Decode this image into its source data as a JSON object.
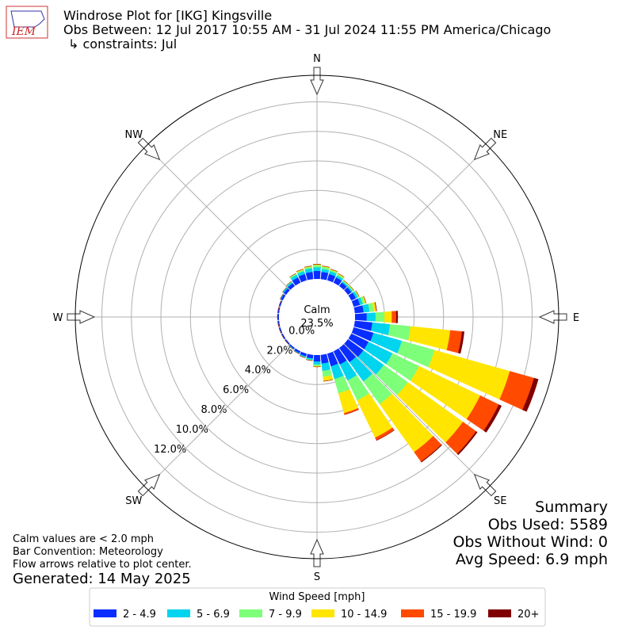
{
  "chart_data": {
    "type": "windrose",
    "title": "Windrose Plot for [IKG] Kingsville",
    "subtitle": "Obs Between: 12 Jul 2017 10:55 AM - 31 Jul 2024 11:55 PM America/Chicago",
    "constraints": "↳ constraints: Jul",
    "logo": "IEM",
    "calm_label": "Calm",
    "calm_value": 23.5,
    "calm_value_label": "23.5%",
    "directions": [
      0,
      10,
      20,
      30,
      40,
      50,
      60,
      70,
      80,
      90,
      100,
      110,
      120,
      130,
      140,
      150,
      160,
      170,
      180,
      190,
      200,
      210,
      220,
      230,
      240,
      250,
      260,
      270,
      280,
      290,
      300,
      310,
      320,
      330,
      340,
      350
    ],
    "xticks": [
      {
        "value": 0,
        "label": "N"
      },
      {
        "value": 45,
        "label": "NE"
      },
      {
        "value": 90,
        "label": "E"
      },
      {
        "value": 135,
        "label": "SE"
      },
      {
        "value": 180,
        "label": "S"
      },
      {
        "value": 225,
        "label": "SW"
      },
      {
        "value": 270,
        "label": "W"
      },
      {
        "value": 315,
        "label": "NW"
      }
    ],
    "ylim": [
      0,
      13.8
    ],
    "yticks": [
      {
        "value": 0,
        "label": "0.0%"
      },
      {
        "value": 2,
        "label": "2.0%"
      },
      {
        "value": 4,
        "label": "4.0%"
      },
      {
        "value": 6,
        "label": "6.0%"
      },
      {
        "value": 8,
        "label": "8.0%"
      },
      {
        "value": 10,
        "label": "10.0%"
      },
      {
        "value": 12,
        "label": "12.0%"
      }
    ],
    "grid": true,
    "legend_title": "Wind Speed [mph]",
    "series": [
      {
        "name": "2 - 4.9",
        "color": "#0a2dff",
        "values": [
          0.55,
          0.5,
          0.45,
          0.4,
          0.3,
          0.3,
          0.35,
          0.45,
          0.6,
          0.8,
          1.2,
          1.4,
          1.3,
          1.3,
          1.2,
          1.0,
          0.9,
          0.6,
          0.45,
          0.25,
          0.2,
          0.15,
          0.1,
          0.1,
          0.1,
          0.1,
          0.1,
          0.1,
          0.1,
          0.1,
          0.15,
          0.2,
          0.25,
          0.4,
          0.45,
          0.5
        ]
      },
      {
        "name": "5 - 6.9",
        "color": "#00d4ee",
        "values": [
          0.25,
          0.2,
          0.2,
          0.15,
          0.1,
          0.1,
          0.15,
          0.2,
          0.4,
          0.6,
          1.2,
          2.0,
          1.8,
          1.7,
          1.6,
          1.2,
          0.9,
          0.5,
          0.2,
          0.1,
          0.07,
          0.05,
          0.05,
          0,
          0,
          0,
          0,
          0,
          0,
          0,
          0.05,
          0.1,
          0.1,
          0.2,
          0.2,
          0.25
        ]
      },
      {
        "name": "7 - 9.9",
        "color": "#7dff7a",
        "values": [
          0.15,
          0.15,
          0.1,
          0.1,
          0.07,
          0.07,
          0.07,
          0.15,
          0.3,
          0.6,
          1.4,
          2.3,
          2.0,
          2.0,
          1.9,
          1.5,
          1.0,
          0.4,
          0.1,
          0.05,
          0.03,
          0,
          0,
          0,
          0,
          0,
          0,
          0,
          0,
          0,
          0,
          0,
          0.05,
          0.08,
          0.1,
          0.1
        ]
      },
      {
        "name": "10 - 14.9",
        "color": "#ffe500",
        "values": [
          0.05,
          0.05,
          0.05,
          0.05,
          0.03,
          0.03,
          0.03,
          0.08,
          0.15,
          0.5,
          2.7,
          5.3,
          4.6,
          4.6,
          4.0,
          2.8,
          1.4,
          0.3,
          0.05,
          0,
          0,
          0,
          0,
          0,
          0,
          0,
          0,
          0,
          0,
          0,
          0,
          0,
          0,
          0.02,
          0.05,
          0.05
        ]
      },
      {
        "name": "15 - 19.9",
        "color": "#ff4a00",
        "values": [
          0,
          0,
          0,
          0,
          0,
          0,
          0,
          0,
          0.03,
          0.3,
          0.8,
          1.7,
          1.4,
          1.1,
          0.8,
          0.2,
          0.1,
          0,
          0,
          0,
          0,
          0,
          0,
          0,
          0,
          0,
          0,
          0,
          0,
          0,
          0,
          0,
          0,
          0,
          0,
          0
        ]
      },
      {
        "name": "20+",
        "color": "#800000",
        "values": [
          0,
          0,
          0,
          0,
          0,
          0,
          0,
          0,
          0.01,
          0.1,
          0.15,
          0.3,
          0.2,
          0.1,
          0.05,
          0.02,
          0,
          0,
          0,
          0,
          0,
          0,
          0,
          0,
          0,
          0,
          0,
          0,
          0,
          0,
          0,
          0,
          0,
          0,
          0,
          0
        ]
      }
    ],
    "notes": [
      "Calm values are < 2.0 mph",
      "Bar Convention: Meteorology",
      "Flow arrows relative to plot center."
    ],
    "generated": "Generated: 14 May 2025",
    "summary": [
      "Summary",
      "Obs Used: 5589",
      "Obs Without Wind: 0",
      "Avg Speed: 6.9 mph"
    ]
  }
}
